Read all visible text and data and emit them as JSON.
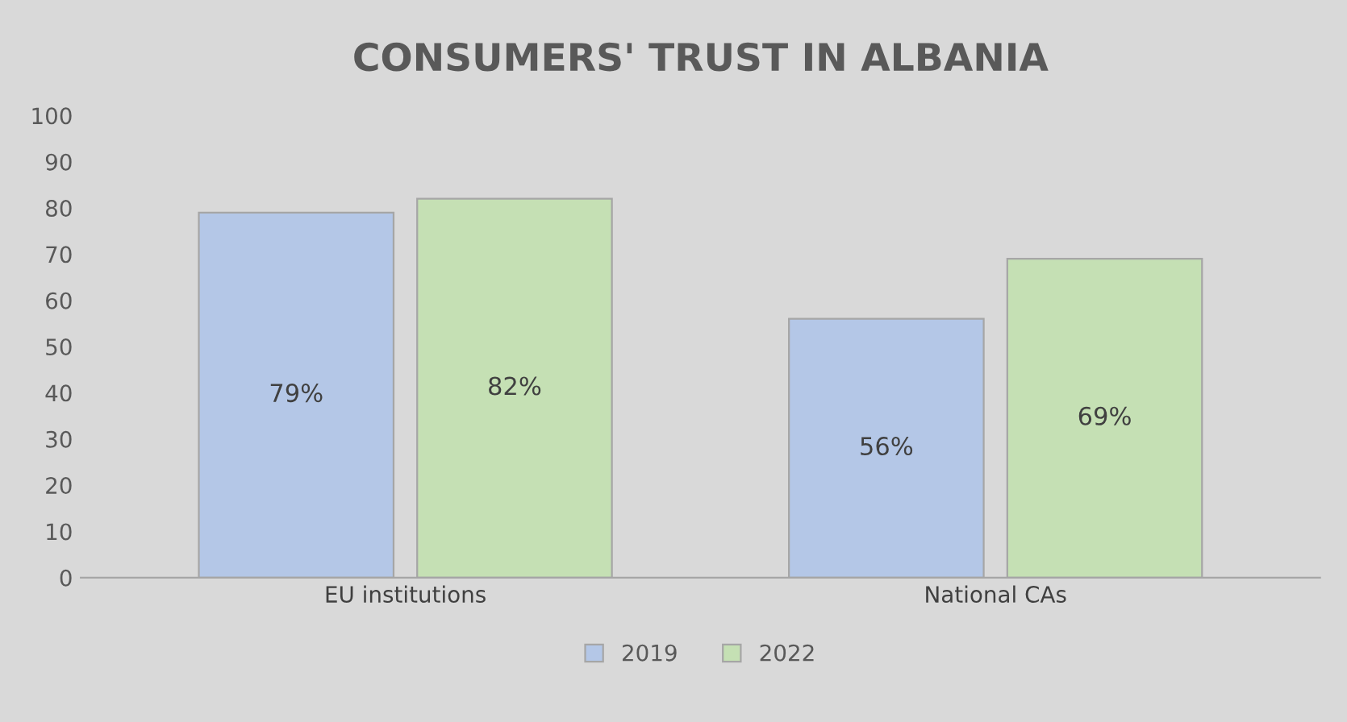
{
  "chart_data": {
    "type": "bar",
    "title": "CONSUMERS' TRUST IN ALBANIA",
    "categories": [
      "EU institutions",
      "National CAs"
    ],
    "series": [
      {
        "name": "2019",
        "color": "#b4c7e7",
        "values": [
          79,
          56
        ],
        "value_labels": [
          "79%",
          "56%"
        ]
      },
      {
        "name": "2022",
        "color": "#c5e0b4",
        "values": [
          82,
          69
        ],
        "value_labels": [
          "82%",
          "69%"
        ]
      }
    ],
    "ylim": [
      0,
      100
    ],
    "yticks": [
      0,
      10,
      20,
      30,
      40,
      50,
      60,
      70,
      80,
      90,
      100
    ],
    "grid": false,
    "legend": "bottom"
  }
}
